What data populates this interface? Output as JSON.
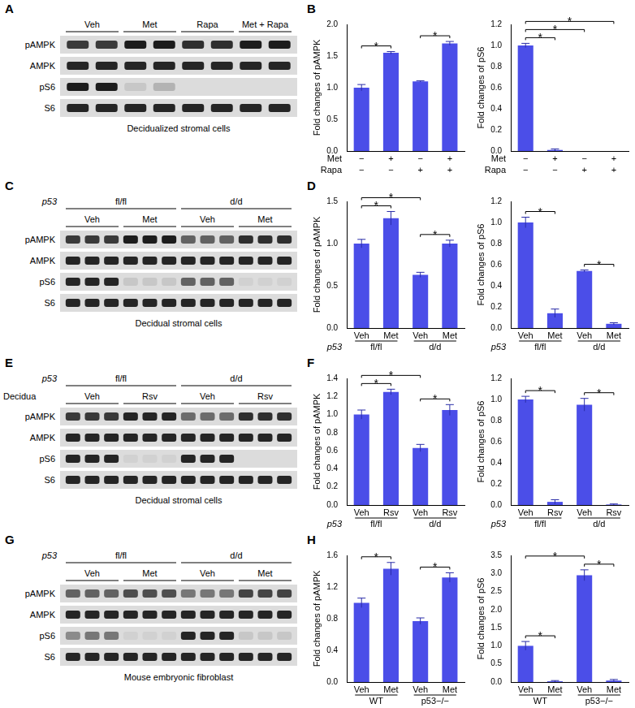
{
  "blots": [
    {
      "letter": "A",
      "groups": [
        "Veh",
        "Met",
        "Rapa",
        "Met + Rapa"
      ],
      "lanes_per_group": 2,
      "rows": [
        {
          "name": "pAMPK",
          "intensity": [
            0.8,
            0.8,
            0.95,
            0.95,
            0.85,
            0.85,
            0.95,
            0.95
          ]
        },
        {
          "name": "AMPK",
          "intensity": [
            0.9,
            0.9,
            0.9,
            0.9,
            0.9,
            0.9,
            0.9,
            0.9
          ]
        },
        {
          "name": "pS6",
          "intensity": [
            0.95,
            0.95,
            0.1,
            0.2,
            0,
            0,
            0,
            0
          ]
        },
        {
          "name": "S6",
          "intensity": [
            0.9,
            0.9,
            0.9,
            0.9,
            0.9,
            0.9,
            0.9,
            0.9
          ]
        }
      ],
      "caption": "Decidualized stromal cells"
    },
    {
      "letter": "C",
      "genotype": {
        "name": "p53",
        "labels": [
          "fl/fl",
          "d/d"
        ]
      },
      "groups": [
        "Veh",
        "Met",
        "Veh",
        "Met"
      ],
      "lanes_per_group": 3,
      "rows": [
        {
          "name": "pAMPK",
          "intensity": [
            0.8,
            0.8,
            0.8,
            0.95,
            0.95,
            0.95,
            0.6,
            0.6,
            0.6,
            0.85,
            0.85,
            0.85
          ]
        },
        {
          "name": "AMPK",
          "intensity": [
            0.9,
            0.9,
            0.9,
            0.9,
            0.9,
            0.9,
            0.9,
            0.9,
            0.9,
            0.9,
            0.9,
            0.9
          ]
        },
        {
          "name": "pS6",
          "intensity": [
            0.9,
            0.9,
            0.9,
            0.1,
            0.1,
            0.1,
            0.6,
            0.6,
            0.6,
            0.05,
            0.05,
            0.05
          ]
        },
        {
          "name": "S6",
          "intensity": [
            0.9,
            0.9,
            0.9,
            0.9,
            0.9,
            0.9,
            0.9,
            0.9,
            0.9,
            0.9,
            0.9,
            0.9
          ]
        }
      ],
      "caption": "Decidual stromal cells"
    },
    {
      "letter": "E",
      "side_label": "Decidua",
      "genotype": {
        "name": "p53",
        "labels": [
          "fl/fl",
          "d/d"
        ]
      },
      "groups": [
        "Veh",
        "Rsv",
        "Veh",
        "Rsv"
      ],
      "lanes_per_group": 3,
      "rows": [
        {
          "name": "pAMPK",
          "intensity": [
            0.8,
            0.8,
            0.8,
            0.9,
            0.9,
            0.9,
            0.55,
            0.55,
            0.55,
            0.85,
            0.85,
            0.85
          ]
        },
        {
          "name": "AMPK",
          "intensity": [
            0.9,
            0.9,
            0.9,
            0.9,
            0.9,
            0.9,
            0.9,
            0.9,
            0.9,
            0.9,
            0.9,
            0.9
          ]
        },
        {
          "name": "pS6",
          "intensity": [
            0.9,
            0.9,
            0.9,
            0.05,
            0.05,
            0.05,
            0.9,
            0.9,
            0.9,
            0,
            0,
            0
          ]
        },
        {
          "name": "S6",
          "intensity": [
            0.9,
            0.9,
            0.9,
            0.9,
            0.9,
            0.9,
            0.9,
            0.9,
            0.9,
            0.9,
            0.9,
            0.9
          ]
        }
      ],
      "caption": "Decidual stromal cells"
    },
    {
      "letter": "G",
      "genotype": {
        "name": "p53",
        "labels": [
          "fl/fl",
          "d/d"
        ]
      },
      "groups": [
        "Veh",
        "Met",
        "Veh",
        "Met"
      ],
      "lanes_per_group": 3,
      "rows": [
        {
          "name": "pAMPK",
          "intensity": [
            0.6,
            0.6,
            0.6,
            0.7,
            0.7,
            0.7,
            0.5,
            0.5,
            0.5,
            0.75,
            0.75,
            0.75
          ]
        },
        {
          "name": "AMPK",
          "intensity": [
            0.9,
            0.9,
            0.9,
            0.9,
            0.9,
            0.9,
            0.9,
            0.9,
            0.9,
            0.9,
            0.9,
            0.9
          ]
        },
        {
          "name": "pS6",
          "intensity": [
            0.4,
            0.5,
            0.5,
            0.05,
            0.05,
            0.05,
            0.9,
            0.9,
            0.9,
            0.1,
            0.1,
            0.1
          ]
        },
        {
          "name": "S6",
          "intensity": [
            0.9,
            0.9,
            0.9,
            0.9,
            0.9,
            0.9,
            0.9,
            0.9,
            0.9,
            0.9,
            0.9,
            0.9
          ]
        }
      ],
      "caption": "Mouse embryonic fibroblast"
    }
  ],
  "chart_data": [
    {
      "panel": "B",
      "type": "bar",
      "ylabel": "Fold changes of pAMPK",
      "color": "#4b4ee8",
      "grid": false,
      "x_rows": [
        {
          "name": "Met",
          "labels": [
            "−",
            "+",
            "−",
            "+"
          ]
        },
        {
          "name": "Rapa",
          "labels": [
            "−",
            "−",
            "+",
            "+"
          ]
        }
      ],
      "values": [
        1.0,
        1.55,
        1.1,
        1.7
      ],
      "errors": [
        0.05,
        0.02,
        0.01,
        0.03
      ],
      "ylim": [
        0,
        2
      ],
      "yticks": [
        {
          "value": 0,
          "label": "0.0"
        },
        0.5,
        {
          "value": 1,
          "label": "1.0"
        },
        1.5,
        {
          "value": 2,
          "label": "2.0"
        }
      ],
      "significance": [
        {
          "pair": [
            0,
            1
          ],
          "label": "*"
        },
        {
          "pair": [
            2,
            3
          ],
          "label": "*"
        }
      ]
    },
    {
      "type": "bar",
      "ylabel": "Fold changes of pS6",
      "color": "#4b4ee8",
      "grid": false,
      "x_rows": [
        {
          "name": "Met",
          "labels": [
            "−",
            "+",
            "−",
            "+"
          ]
        },
        {
          "name": "Rapa",
          "labels": [
            "−",
            "−",
            "+",
            "+"
          ]
        }
      ],
      "values": [
        1.0,
        0.01,
        0.0,
        0.0
      ],
      "errors": [
        0.02,
        0.01,
        0,
        0
      ],
      "ylim": [
        0,
        1.2
      ],
      "yticks": [
        {
          "value": 0,
          "label": "0.0"
        },
        0.2,
        0.4,
        0.6,
        0.8,
        {
          "value": 1,
          "label": "1.0"
        },
        1.2
      ],
      "significance": [
        {
          "pair": [
            0,
            1
          ],
          "label": "*"
        },
        {
          "pair": [
            0,
            2
          ],
          "label": "*"
        },
        {
          "pair": [
            0,
            3
          ],
          "label": "*"
        }
      ]
    },
    {
      "panel": "D",
      "type": "bar",
      "ylabel": "Fold changes of pAMPK",
      "color": "#4b4ee8",
      "grid": false,
      "x_rows": [
        {
          "labels": [
            "Veh",
            "Met",
            "Veh",
            "Met"
          ]
        },
        {
          "name": "p53",
          "labels": [
            "fl/fl",
            "d/d"
          ]
        }
      ],
      "values": [
        1.0,
        1.3,
        0.63,
        1.0
      ],
      "errors": [
        0.05,
        0.08,
        0.03,
        0.04
      ],
      "ylim": [
        0,
        1.5
      ],
      "yticks": [
        {
          "value": 0,
          "label": "0.0"
        },
        0.5,
        {
          "value": 1,
          "label": "1.0"
        },
        1.5
      ],
      "significance": [
        {
          "pair": [
            0,
            1
          ],
          "label": "*"
        },
        {
          "pair": [
            0,
            2
          ],
          "label": "*"
        },
        {
          "pair": [
            2,
            3
          ],
          "label": "*"
        }
      ]
    },
    {
      "type": "bar",
      "ylabel": "Fold changes of pS6",
      "color": "#4b4ee8",
      "grid": false,
      "x_rows": [
        {
          "labels": [
            "Veh",
            "Met",
            "Veh",
            "Met"
          ]
        },
        {
          "name": "p53",
          "labels": [
            "fl/fl",
            "d/d"
          ]
        }
      ],
      "values": [
        1.0,
        0.14,
        0.54,
        0.04
      ],
      "errors": [
        0.05,
        0.04,
        0.01,
        0.01
      ],
      "ylim": [
        0,
        1.2
      ],
      "yticks": [
        {
          "value": 0,
          "label": "0.0"
        },
        0.2,
        0.4,
        0.6,
        0.8,
        {
          "value": 1,
          "label": "1.0"
        },
        1.2
      ],
      "significance": [
        {
          "pair": [
            0,
            1
          ],
          "label": "*"
        },
        {
          "pair": [
            2,
            3
          ],
          "label": "*"
        }
      ]
    },
    {
      "panel": "F",
      "type": "bar",
      "ylabel": "Fold changes of pAMPK",
      "color": "#4b4ee8",
      "grid": false,
      "x_rows": [
        {
          "labels": [
            "Veh",
            "Rsv",
            "Veh",
            "Rsv"
          ]
        },
        {
          "name": "p53",
          "labels": [
            "fl/fl",
            "d/d"
          ]
        }
      ],
      "values": [
        1.0,
        1.25,
        0.63,
        1.05
      ],
      "errors": [
        0.05,
        0.03,
        0.04,
        0.06
      ],
      "ylim": [
        0,
        1.4
      ],
      "yticks": [
        {
          "value": 0,
          "label": "0.0"
        },
        0.2,
        0.4,
        0.6,
        0.8,
        {
          "value": 1,
          "label": "1.0"
        },
        1.2,
        1.4
      ],
      "significance": [
        {
          "pair": [
            0,
            1
          ],
          "label": "*"
        },
        {
          "pair": [
            0,
            2
          ],
          "label": "*"
        },
        {
          "pair": [
            2,
            3
          ],
          "label": "*"
        }
      ]
    },
    {
      "type": "bar",
      "ylabel": "Fold changes of pS6",
      "color": "#4b4ee8",
      "grid": false,
      "x_rows": [
        {
          "labels": [
            "Veh",
            "Rsv",
            "Veh",
            "Rsv"
          ]
        },
        {
          "name": "p53",
          "labels": [
            "fl/fl",
            "d/d"
          ]
        }
      ],
      "values": [
        1.0,
        0.03,
        0.95,
        0.005
      ],
      "errors": [
        0.03,
        0.02,
        0.06,
        0.005
      ],
      "ylim": [
        0,
        1.2
      ],
      "yticks": [
        {
          "value": 0,
          "label": "0.0"
        },
        0.2,
        0.4,
        0.6,
        0.8,
        {
          "value": 1,
          "label": "1.0"
        },
        1.2
      ],
      "significance": [
        {
          "pair": [
            0,
            1
          ],
          "label": "*"
        },
        {
          "pair": [
            2,
            3
          ],
          "label": "*"
        }
      ]
    },
    {
      "panel": "H",
      "type": "bar",
      "ylabel": "Fold changes of pAMPK",
      "color": "#4b4ee8",
      "grid": false,
      "x_rows": [
        {
          "labels": [
            "Veh",
            "Met",
            "Veh",
            "Met"
          ]
        },
        {
          "labels": [
            "WT",
            "p53−/−"
          ]
        }
      ],
      "values": [
        1.0,
        1.43,
        0.77,
        1.32
      ],
      "errors": [
        0.06,
        0.08,
        0.04,
        0.06
      ],
      "ylim": [
        0,
        1.6
      ],
      "yticks": [
        {
          "value": 0,
          "label": "0.0"
        },
        0.4,
        0.8,
        1.2,
        1.6
      ],
      "significance": [
        {
          "pair": [
            0,
            1
          ],
          "label": "*"
        },
        {
          "pair": [
            2,
            3
          ],
          "label": "*"
        }
      ]
    },
    {
      "type": "bar",
      "ylabel": "Fold changes of pS6",
      "color": "#4b4ee8",
      "grid": false,
      "x_rows": [
        {
          "labels": [
            "Veh",
            "Met",
            "Veh",
            "Met"
          ]
        },
        {
          "labels": [
            "WT",
            "p53−/−"
          ]
        }
      ],
      "values": [
        1.0,
        0.02,
        2.95,
        0.04
      ],
      "errors": [
        0.12,
        0.02,
        0.15,
        0.03
      ],
      "ylim": [
        0,
        3.5
      ],
      "yticks": [
        {
          "value": 0,
          "label": "0.0"
        },
        0.5,
        {
          "value": 1,
          "label": "1.0"
        },
        1.5,
        {
          "value": 2,
          "label": "2.0"
        },
        2.5,
        {
          "value": 3,
          "label": "3.0"
        },
        3.5
      ],
      "significance": [
        {
          "pair": [
            0,
            1
          ],
          "label": "*"
        },
        {
          "pair": [
            0,
            2
          ],
          "label": "*"
        },
        {
          "pair": [
            2,
            3
          ],
          "label": "*"
        }
      ]
    }
  ]
}
